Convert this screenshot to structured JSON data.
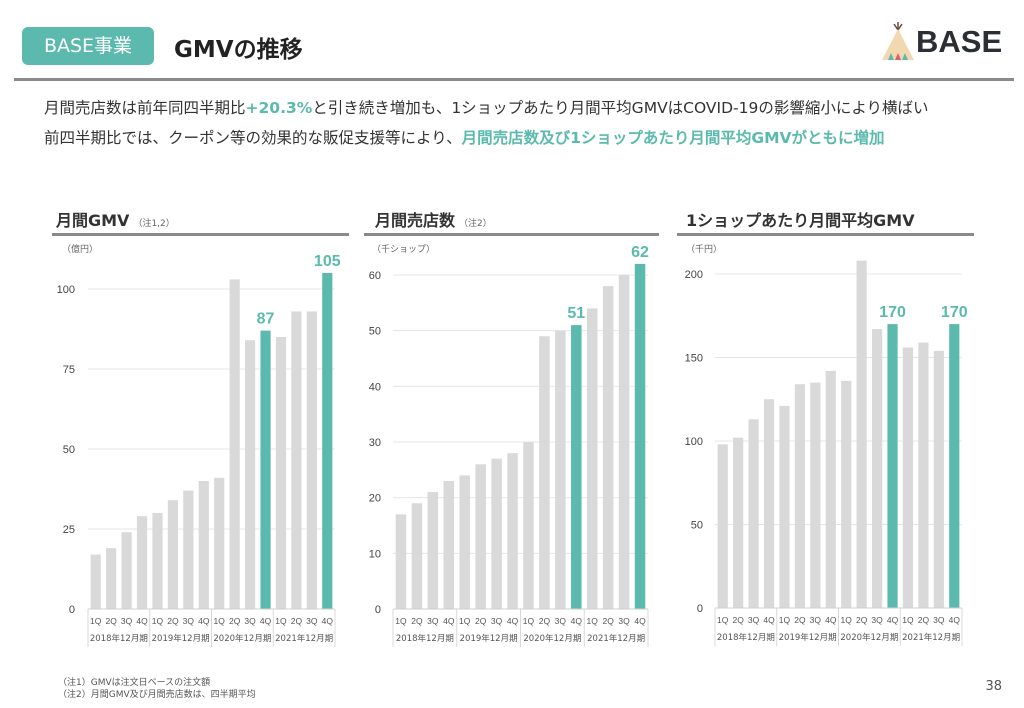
{
  "header": {
    "badge": "BASE事業",
    "title": "GMVの推移",
    "logo_text": "BASE"
  },
  "lead": {
    "line1_a": "月間売店数は前年同四半期比",
    "line1_hl": "+20.3%",
    "line1_b": "と引き続き増加も、1ショップあたり月間平均GMVはCOVID-19の影響縮小により横ばい",
    "line2_a": "前四半期比では、クーポン等の効果的な販促支援等により、",
    "line2_hl": "月間売店数及び1ショップあたり月間平均GMVがともに増加"
  },
  "colors": {
    "accent": "#5BBAAD",
    "bar": "#D9D9D9",
    "rule": "#8A8A8A"
  },
  "chart_data": [
    {
      "type": "bar",
      "title": "月間GMV",
      "title_note": "（注1,2）",
      "ylabel": "（億円）",
      "categories": [
        "1Q",
        "2Q",
        "3Q",
        "4Q",
        "1Q",
        "2Q",
        "3Q",
        "4Q",
        "1Q",
        "2Q",
        "3Q",
        "4Q",
        "1Q",
        "2Q",
        "3Q",
        "4Q"
      ],
      "groups": [
        "2018年12月期",
        "2019年12月期",
        "2020年12月期",
        "2021年12月期"
      ],
      "values": [
        17,
        19,
        24,
        29,
        30,
        34,
        37,
        40,
        41,
        103,
        84,
        87,
        85,
        93,
        93,
        105
      ],
      "highlight": [
        11,
        15
      ],
      "data_labels": {
        "11": "87",
        "15": "105"
      },
      "yticks": [
        0,
        25,
        50,
        75,
        100
      ],
      "ylim": [
        0,
        110
      ],
      "grid": true
    },
    {
      "type": "bar",
      "title": "月間売店数",
      "title_note": "（注2）",
      "ylabel": "（千ショップ）",
      "categories": [
        "1Q",
        "2Q",
        "3Q",
        "4Q",
        "1Q",
        "2Q",
        "3Q",
        "4Q",
        "1Q",
        "2Q",
        "3Q",
        "4Q",
        "1Q",
        "2Q",
        "3Q",
        "4Q"
      ],
      "groups": [
        "2018年12月期",
        "2019年12月期",
        "2020年12月期",
        "2021年12月期"
      ],
      "values": [
        17,
        19,
        21,
        23,
        24,
        26,
        27,
        28,
        30,
        49,
        50,
        51,
        54,
        58,
        60,
        62
      ],
      "highlight": [
        11,
        15
      ],
      "data_labels": {
        "11": "51",
        "15": "62"
      },
      "yticks": [
        0,
        10,
        20,
        30,
        40,
        50,
        60
      ],
      "ylim": [
        0,
        62
      ],
      "grid": true
    },
    {
      "type": "bar",
      "title": "1ショップあたり月間平均GMV",
      "title_note": "",
      "ylabel": "（千円）",
      "categories": [
        "1Q",
        "2Q",
        "3Q",
        "4Q",
        "1Q",
        "2Q",
        "3Q",
        "4Q",
        "1Q",
        "2Q",
        "3Q",
        "4Q",
        "1Q",
        "2Q",
        "3Q",
        "4Q"
      ],
      "groups": [
        "2018年12月期",
        "2019年12月期",
        "2020年12月期",
        "2021年12月期"
      ],
      "values": [
        98,
        102,
        113,
        125,
        121,
        134,
        135,
        142,
        136,
        208,
        167,
        170,
        156,
        159,
        154,
        170
      ],
      "highlight": [
        11,
        15
      ],
      "data_labels": {
        "11": "170",
        "15": "170"
      },
      "yticks": [
        0,
        50,
        100,
        150,
        200
      ],
      "ylim": [
        0,
        210
      ],
      "grid": true
    }
  ],
  "footer": {
    "note1": "（注1）GMVは注文日ベースの注文額",
    "note2": "（注2）月間GMV及び月間売店数は、四半期平均",
    "page": "38"
  }
}
